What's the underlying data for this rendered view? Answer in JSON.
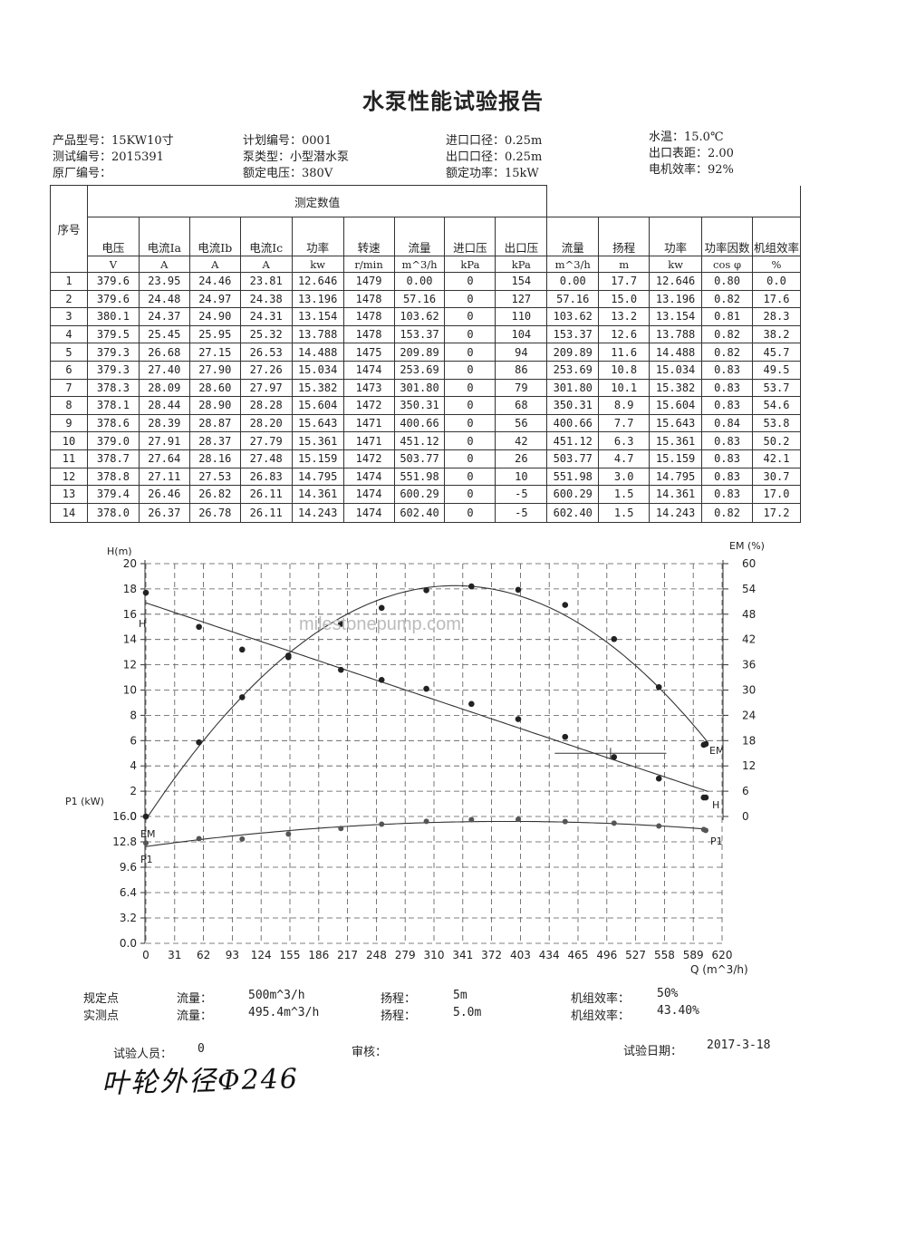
{
  "title": "水泵性能试验报告",
  "info": {
    "col1": [
      "产品型号：15KW10寸",
      "测试编号：2015391",
      "原厂编号："
    ],
    "col2": [
      "计划编号：0001",
      "泵类型：小型潜水泵",
      "额定电压：380V"
    ],
    "col3": [
      "进口口径：0.25m",
      "出口口径：0.25m",
      "额定功率：15kW"
    ],
    "col4": [
      "水温：15.0℃",
      "出口表距：2.00",
      "电机效率：92%"
    ]
  },
  "table": {
    "seq_header": "序号",
    "group_header": "测定数值",
    "headers": [
      "电压",
      "电流Ia",
      "电流Ib",
      "电流Ic",
      "功率",
      "转速",
      "流量",
      "进口压",
      "出口压",
      "流量",
      "扬程",
      "功率",
      "功率因数",
      "机组效率"
    ],
    "units": [
      "V",
      "A",
      "A",
      "A",
      "kw",
      "r/min",
      "m^3/h",
      "kPa",
      "kPa",
      "m^3/h",
      "m",
      "kw",
      "cos φ",
      "%"
    ],
    "rows": [
      [
        "1",
        "379.6",
        "23.95",
        "24.46",
        "23.81",
        "12.646",
        "1479",
        "0.00",
        "0",
        "154",
        "0.00",
        "17.7",
        "12.646",
        "0.80",
        "0.0"
      ],
      [
        "2",
        "379.6",
        "24.48",
        "24.97",
        "24.38",
        "13.196",
        "1478",
        "57.16",
        "0",
        "127",
        "57.16",
        "15.0",
        "13.196",
        "0.82",
        "17.6"
      ],
      [
        "3",
        "380.1",
        "24.37",
        "24.90",
        "24.31",
        "13.154",
        "1478",
        "103.62",
        "0",
        "110",
        "103.62",
        "13.2",
        "13.154",
        "0.81",
        "28.3"
      ],
      [
        "4",
        "379.5",
        "25.45",
        "25.95",
        "25.32",
        "13.788",
        "1478",
        "153.37",
        "0",
        "104",
        "153.37",
        "12.6",
        "13.788",
        "0.82",
        "38.2"
      ],
      [
        "5",
        "379.3",
        "26.68",
        "27.15",
        "26.53",
        "14.488",
        "1475",
        "209.89",
        "0",
        "94",
        "209.89",
        "11.6",
        "14.488",
        "0.82",
        "45.7"
      ],
      [
        "6",
        "379.3",
        "27.40",
        "27.90",
        "27.26",
        "15.034",
        "1474",
        "253.69",
        "0",
        "86",
        "253.69",
        "10.8",
        "15.034",
        "0.83",
        "49.5"
      ],
      [
        "7",
        "378.3",
        "28.09",
        "28.60",
        "27.97",
        "15.382",
        "1473",
        "301.80",
        "0",
        "79",
        "301.80",
        "10.1",
        "15.382",
        "0.83",
        "53.7"
      ],
      [
        "8",
        "378.1",
        "28.44",
        "28.90",
        "28.28",
        "15.604",
        "1472",
        "350.31",
        "0",
        "68",
        "350.31",
        "8.9",
        "15.604",
        "0.83",
        "54.6"
      ],
      [
        "9",
        "378.6",
        "28.39",
        "28.87",
        "28.20",
        "15.643",
        "1471",
        "400.66",
        "0",
        "56",
        "400.66",
        "7.7",
        "15.643",
        "0.84",
        "53.8"
      ],
      [
        "10",
        "379.0",
        "27.91",
        "28.37",
        "27.79",
        "15.361",
        "1471",
        "451.12",
        "0",
        "42",
        "451.12",
        "6.3",
        "15.361",
        "0.83",
        "50.2"
      ],
      [
        "11",
        "378.7",
        "27.64",
        "28.16",
        "27.48",
        "15.159",
        "1472",
        "503.77",
        "0",
        "26",
        "503.77",
        "4.7",
        "15.159",
        "0.83",
        "42.1"
      ],
      [
        "12",
        "378.8",
        "27.11",
        "27.53",
        "26.83",
        "14.795",
        "1474",
        "551.98",
        "0",
        "10",
        "551.98",
        "3.0",
        "14.795",
        "0.83",
        "30.7"
      ],
      [
        "13",
        "379.4",
        "26.46",
        "26.82",
        "26.11",
        "14.361",
        "1474",
        "600.29",
        "0",
        "-5",
        "600.29",
        "1.5",
        "14.361",
        "0.83",
        "17.0"
      ],
      [
        "14",
        "378.0",
        "26.37",
        "26.78",
        "26.11",
        "14.243",
        "1474",
        "602.40",
        "0",
        "-5",
        "602.40",
        "1.5",
        "14.243",
        "0.82",
        "17.2"
      ]
    ]
  },
  "chart_data": {
    "type": "scatter",
    "x": [
      0.0,
      57.16,
      103.62,
      153.37,
      209.89,
      253.69,
      301.8,
      350.31,
      400.66,
      451.12,
      503.77,
      551.98,
      600.29,
      602.4
    ],
    "series": [
      {
        "name": "H",
        "values": [
          17.7,
          15.0,
          13.2,
          12.6,
          11.6,
          10.8,
          10.1,
          8.9,
          7.7,
          6.3,
          4.7,
          3.0,
          1.5,
          1.5
        ]
      },
      {
        "name": "EM",
        "values": [
          0.0,
          17.6,
          28.3,
          38.2,
          45.7,
          49.5,
          53.7,
          54.6,
          53.8,
          50.2,
          42.1,
          30.7,
          17.0,
          17.2
        ]
      },
      {
        "name": "P1",
        "values": [
          12.646,
          13.196,
          13.154,
          13.788,
          14.488,
          15.034,
          15.382,
          15.604,
          15.643,
          15.361,
          15.159,
          14.795,
          14.361,
          14.243
        ]
      }
    ],
    "xlabel": "Q (m^3/h)",
    "ylabel_h": "H(m)",
    "ylabel_em": "EM (%)",
    "ylabel_p": "P1 (kW)",
    "xticks": [
      0,
      31,
      62,
      93,
      124,
      155,
      186,
      217,
      248,
      279,
      310,
      341,
      372,
      403,
      434,
      465,
      496,
      527,
      558,
      589,
      620
    ],
    "yticks_h": [
      0,
      2,
      4,
      6,
      8,
      10,
      12,
      14,
      16,
      18,
      20
    ],
    "yticks_em": [
      0,
      6,
      12,
      18,
      24,
      30,
      36,
      42,
      48,
      54,
      60
    ],
    "yticks_p": [
      "0.0",
      "3.2",
      "6.4",
      "9.6",
      "12.8",
      "16.0"
    ],
    "xlim": [
      0,
      620
    ],
    "ylim_h": [
      0,
      20
    ],
    "ylim_em": [
      0,
      60
    ],
    "ylim_p": [
      0,
      16
    ],
    "watermark": "milestonepump.com",
    "grid": true
  },
  "footer": {
    "spec_label": "规定点",
    "spec_flow": "流量：",
    "spec_flow_val": "500m^3/h",
    "spec_head": "扬程：",
    "spec_head_val": "5m",
    "spec_eff": "机组效率：",
    "spec_eff_val": "50%",
    "meas_label": "实测点",
    "meas_flow": "流量：",
    "meas_flow_val": "495.4m^3/h",
    "meas_head": "扬程：",
    "meas_head_val": "5.0m",
    "meas_eff": "机组效率：",
    "meas_eff_val": "43.40%",
    "tester": "试验人员：",
    "tester_val": "0",
    "review": "审核：",
    "date_label": "试验日期：",
    "date_val": "2017-3-18",
    "handwriting": "叶轮外径Φ246"
  }
}
